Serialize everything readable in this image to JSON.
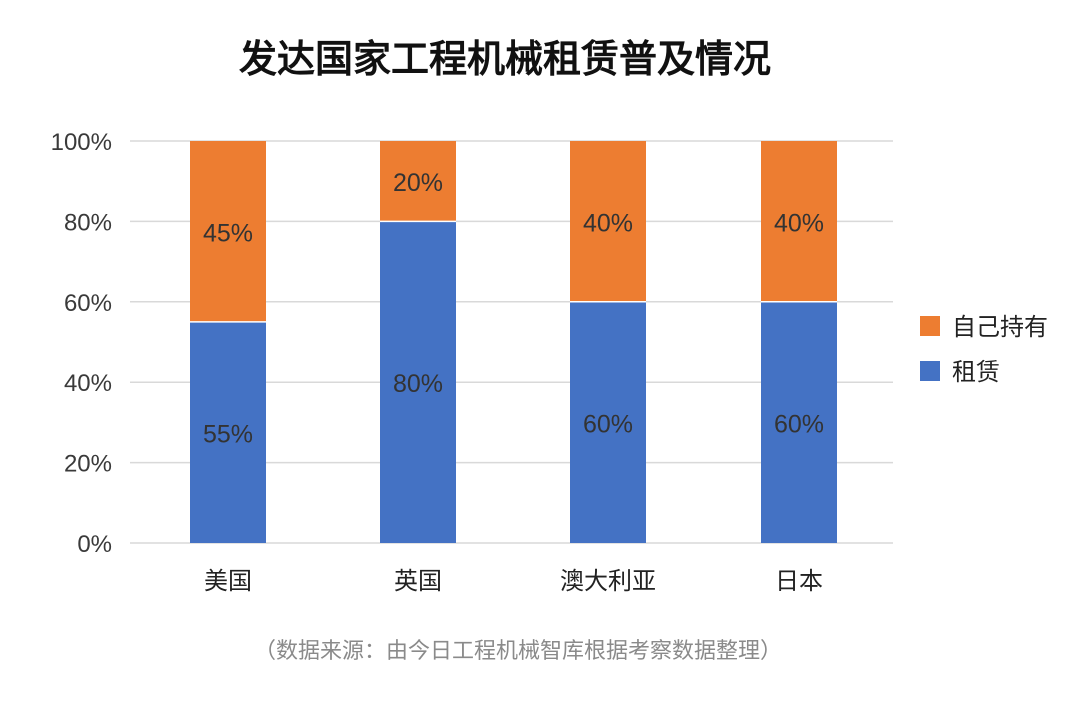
{
  "chart_data": {
    "type": "bar",
    "stacked": true,
    "title": "发达国家工程机械租赁普及情况",
    "categories": [
      "美国",
      "英国",
      "澳大利亚",
      "日本"
    ],
    "series": [
      {
        "name": "租赁",
        "values": [
          55,
          80,
          60,
          60
        ],
        "labels": [
          "55%",
          "80%",
          "60%",
          "60%"
        ],
        "color": "#4472c4"
      },
      {
        "name": "自己持有",
        "values": [
          45,
          20,
          40,
          40
        ],
        "labels": [
          "45%",
          "20%",
          "40%",
          "40%"
        ],
        "color": "#ed7d31"
      }
    ],
    "ylim": [
      0,
      100
    ],
    "yticks": [
      "0%",
      "20%",
      "40%",
      "60%",
      "80%",
      "100%"
    ],
    "grid": true,
    "legend": {
      "placement": "right",
      "items": [
        "自己持有",
        "租赁"
      ]
    },
    "source": "（数据来源：由今日工程机械智库根据考察数据整理）"
  },
  "colors": {
    "grid": "#d9d9d9",
    "background": "#ffffff"
  }
}
